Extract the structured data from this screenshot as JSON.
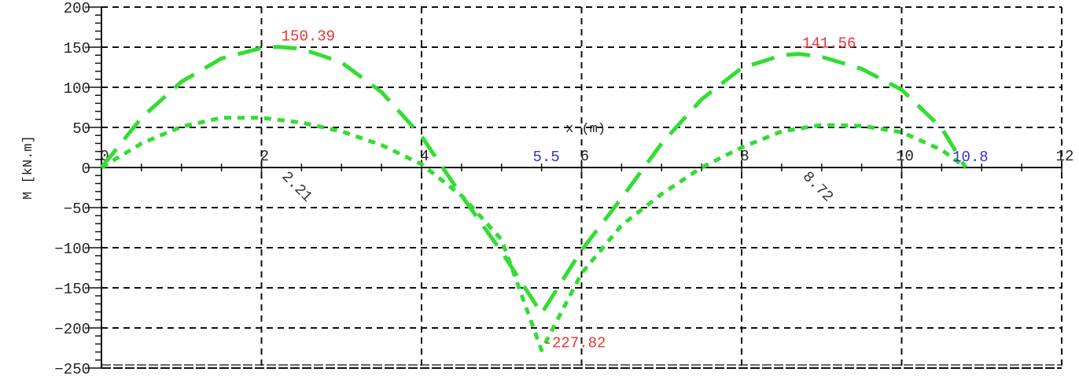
{
  "chart_data": {
    "type": "line",
    "title": "",
    "xlabel": "x (m)",
    "ylabel": "M [kN.m]",
    "xlim": [
      0,
      12
    ],
    "ylim": [
      -250,
      200
    ],
    "grid": true,
    "x_ticks": [
      0,
      2,
      4,
      6,
      8,
      10,
      12
    ],
    "y_ticks": [
      200,
      150,
      100,
      50,
      0,
      -50,
      -100,
      -150,
      -200,
      -250
    ],
    "series": [
      {
        "style": "long-dash",
        "color": "#33dd33",
        "x": [
          0,
          0.5,
          1,
          1.5,
          2,
          2.21,
          2.5,
          3,
          3.5,
          4,
          4.5,
          5,
          5.5,
          6,
          6.5,
          7,
          7.5,
          8,
          8.5,
          8.72,
          9,
          9.5,
          10,
          10.5,
          10.8
        ],
        "y": [
          0,
          62,
          107,
          136,
          149,
          150.39,
          148,
          131,
          94,
          39,
          -35,
          -105,
          -182,
          -103,
          -38,
          30,
          85,
          124,
          140,
          141.56,
          138,
          123,
          97,
          49,
          0
        ]
      },
      {
        "style": "short-dash",
        "color": "#33dd33",
        "x": [
          0,
          0.5,
          1,
          1.5,
          2,
          2.5,
          3,
          3.5,
          4,
          4.5,
          5,
          5.5,
          6,
          6.5,
          7,
          7.5,
          8,
          8.5,
          9,
          9.5,
          10,
          10.5,
          10.8
        ],
        "y": [
          0,
          30,
          51,
          62,
          62,
          56,
          45,
          28,
          4,
          -35,
          -90,
          -227.82,
          -132,
          -72,
          -33,
          0,
          25,
          45,
          53,
          52,
          44,
          22,
          0
        ]
      }
    ],
    "annotations": [
      {
        "text": "150.39",
        "x": 2.21,
        "y": 150.39,
        "color": "#ee3333"
      },
      {
        "text": "141.56",
        "x": 8.72,
        "y": 141.56,
        "color": "#ee3333"
      },
      {
        "text": "-227.82",
        "x": 5.5,
        "y": -227.82,
        "color": "#ee3333"
      },
      {
        "text": "5.5",
        "x": 5.5,
        "y": 0,
        "color": "#3333cc"
      },
      {
        "text": "10.8",
        "x": 10.8,
        "y": 0,
        "color": "#3333cc"
      },
      {
        "text": "2.21",
        "x": 2.21,
        "y": 0,
        "color": "#333333",
        "rotated": true
      },
      {
        "text": "8.72",
        "x": 8.72,
        "y": 0,
        "color": "#333333",
        "rotated": true
      }
    ]
  }
}
